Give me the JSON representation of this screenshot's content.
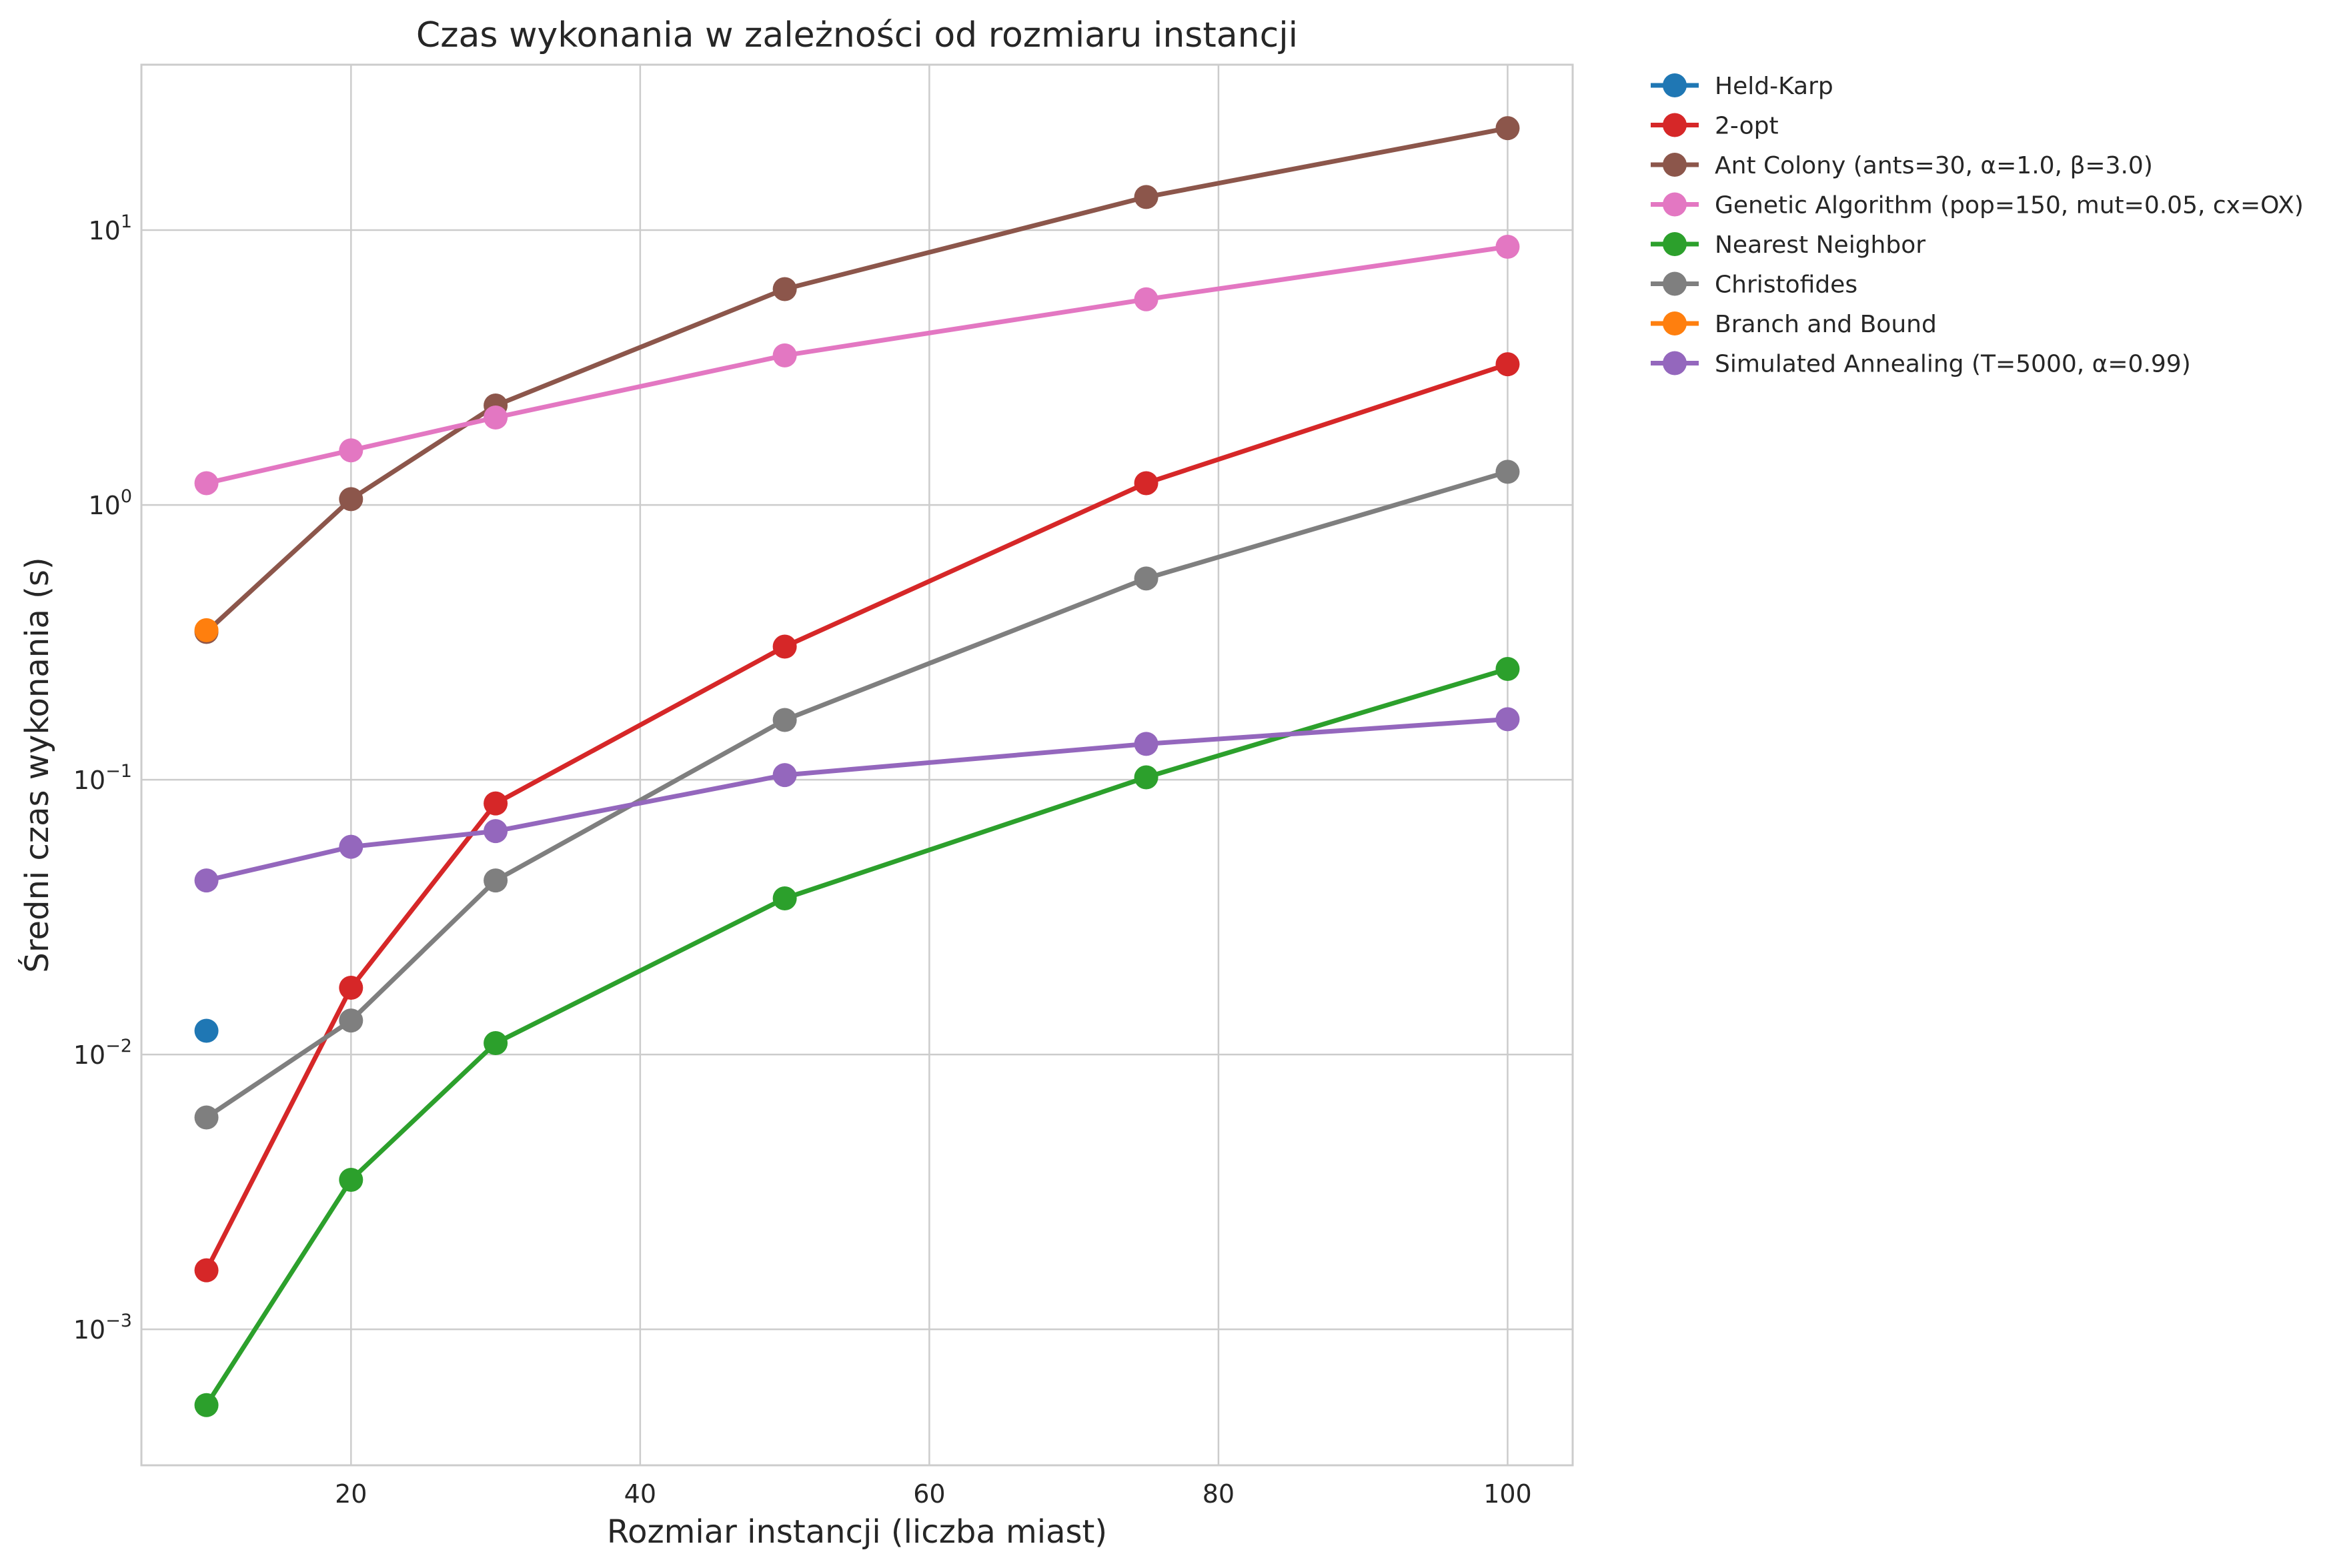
{
  "chart_data": {
    "type": "line",
    "title": "Czas wykonania w zależności od rozmiaru instancji",
    "xlabel": "Rozmiar instancji (liczba miast)",
    "ylabel": "Średni czas wykonania (s)",
    "x_scale": "linear",
    "y_scale": "log",
    "xlim": [
      5.5,
      104.5
    ],
    "ylim": [
      0.00032,
      40
    ],
    "x_ticks": [
      20,
      40,
      60,
      80,
      100
    ],
    "y_ticks": [
      {
        "value": 0.001,
        "base": "10",
        "exp": "−3"
      },
      {
        "value": 0.01,
        "base": "10",
        "exp": "−2"
      },
      {
        "value": 0.1,
        "base": "10",
        "exp": "−1"
      },
      {
        "value": 1,
        "base": "10",
        "exp": "0"
      },
      {
        "value": 10,
        "base": "10",
        "exp": "1"
      }
    ],
    "grid": true,
    "legend_position": "outside-top-right",
    "series": [
      {
        "name": "Held-Karp",
        "color": "#1f77b4",
        "x": [
          10
        ],
        "y": [
          0.0122
        ]
      },
      {
        "name": "2-opt",
        "color": "#d62728",
        "x": [
          10,
          20,
          30,
          50,
          75,
          100
        ],
        "y": [
          0.00164,
          0.0175,
          0.082,
          0.305,
          1.2,
          3.25
        ]
      },
      {
        "name": "Ant Colony (ants=30, α=1.0, β=3.0)",
        "color": "#8c564b",
        "x": [
          10,
          20,
          30,
          50,
          75,
          100
        ],
        "y": [
          0.345,
          1.05,
          2.3,
          6.1,
          13.2,
          23.5
        ]
      },
      {
        "name": "Genetic Algorithm (pop=150, mut=0.05, cx=OX)",
        "color": "#e377c2",
        "x": [
          10,
          20,
          30,
          50,
          75,
          100
        ],
        "y": [
          1.2,
          1.58,
          2.08,
          3.5,
          5.6,
          8.7
        ]
      },
      {
        "name": "Nearest Neighbor",
        "color": "#2ca02c",
        "x": [
          10,
          20,
          30,
          50,
          75,
          100
        ],
        "y": [
          0.00053,
          0.0035,
          0.011,
          0.037,
          0.102,
          0.253
        ]
      },
      {
        "name": "Christofides",
        "color": "#7f7f7f",
        "x": [
          10,
          20,
          30,
          50,
          75,
          100
        ],
        "y": [
          0.0059,
          0.0133,
          0.043,
          0.165,
          0.54,
          1.32
        ]
      },
      {
        "name": "Branch and Bound",
        "color": "#ff7f0e",
        "x": [
          10
        ],
        "y": [
          0.35
        ]
      },
      {
        "name": "Simulated Annealing (T=5000, α=0.99)",
        "color": "#9467bd",
        "x": [
          10,
          20,
          30,
          50,
          75,
          100
        ],
        "y": [
          0.043,
          0.057,
          0.065,
          0.104,
          0.135,
          0.166
        ]
      }
    ]
  }
}
